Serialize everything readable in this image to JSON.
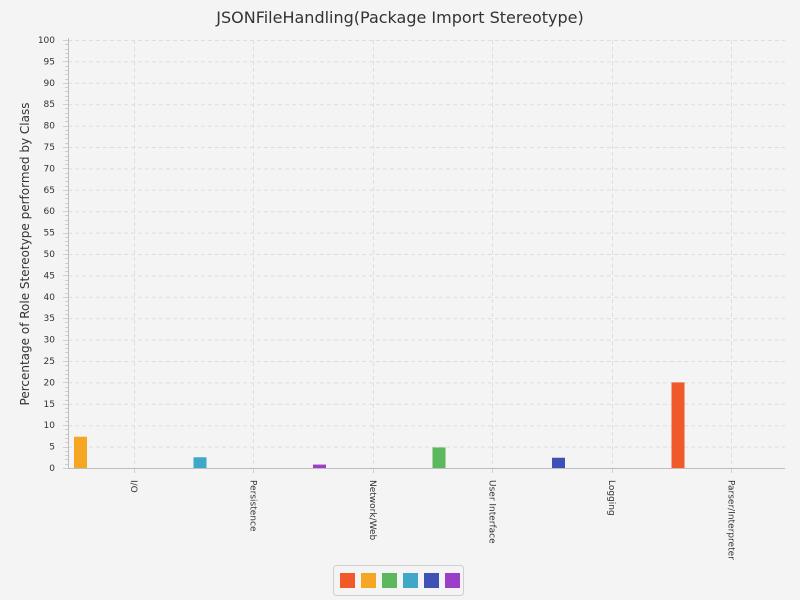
{
  "chart_data": {
    "type": "bar",
    "title": "JSONFileHandling(Package Import Stereotype)",
    "xlabel": "",
    "ylabel": "Percentage of Role Stereotype performed by Class",
    "ylim": [
      0,
      100
    ],
    "yticks": [
      0,
      5,
      10,
      15,
      20,
      25,
      30,
      35,
      40,
      45,
      50,
      55,
      60,
      65,
      70,
      75,
      80,
      85,
      90,
      95,
      100
    ],
    "categories": [
      "I/O",
      "Persistence",
      "Network/Web",
      "User Interface",
      "Logging",
      "Parser/Interpreter"
    ],
    "series": [
      {
        "color": "#f05a2a",
        "values": [
          0,
          0,
          0,
          0,
          0,
          20
        ]
      },
      {
        "color": "#f5a623",
        "values": [
          7.3,
          0,
          0,
          0,
          0,
          0
        ]
      },
      {
        "color": "#5cb85c",
        "values": [
          0,
          0,
          0,
          4.8,
          0,
          0
        ]
      },
      {
        "color": "#3fa8c8",
        "values": [
          0,
          2.5,
          0,
          0,
          0,
          0
        ]
      },
      {
        "color": "#3f51b5",
        "values": [
          0,
          0,
          0,
          0,
          2.4,
          0
        ]
      },
      {
        "color": "#9b3fc8",
        "values": [
          0,
          0,
          0.8,
          0,
          0,
          0
        ]
      }
    ],
    "grid": true,
    "legend": "bottom"
  }
}
